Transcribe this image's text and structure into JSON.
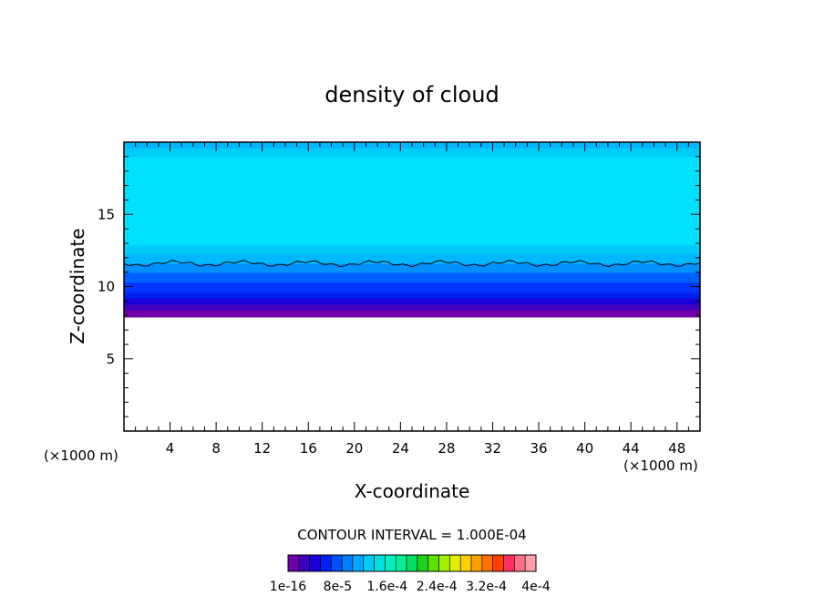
{
  "chart_data": {
    "type": "heatmap",
    "title": "density of cloud",
    "xlabel": "X-coordinate",
    "ylabel": "Z-coordinate",
    "x_unit": "(×1000 m)",
    "z_unit": "(×1000 m)",
    "xlim": [
      0,
      50
    ],
    "ylim": [
      0,
      20
    ],
    "x_ticks": [
      4,
      8,
      12,
      16,
      20,
      24,
      28,
      32,
      36,
      40,
      44,
      48
    ],
    "y_ticks": [
      5,
      10,
      15
    ],
    "contour_interval_label": "CONTOUR INTERVAL = 1.000E-04",
    "colorbar_labels": [
      "1e-16",
      "8e-5",
      "1.6e-4",
      "2.4e-4",
      "3.2e-4",
      "4e-4"
    ],
    "colorbar_colors": [
      "#7000a8",
      "#4000c0",
      "#1a00d8",
      "#0020f0",
      "#0050ff",
      "#0080ff",
      "#00aaff",
      "#00ccf8",
      "#00e0e0",
      "#00f0c0",
      "#00f09a",
      "#00e060",
      "#20d020",
      "#60e000",
      "#a0f000",
      "#e0f000",
      "#ffd000",
      "#ffa000",
      "#ff7000",
      "#ff4000",
      "#ff3060",
      "#ff6f8a",
      "#ffa0a8"
    ],
    "field_bands": [
      {
        "z_min": 7.9,
        "z_max": 8.4,
        "color": "#7000a8"
      },
      {
        "z_min": 8.4,
        "z_max": 8.8,
        "color": "#4000c0"
      },
      {
        "z_min": 8.8,
        "z_max": 9.2,
        "color": "#1a00d8"
      },
      {
        "z_min": 9.2,
        "z_max": 9.6,
        "color": "#0020f0"
      },
      {
        "z_min": 9.6,
        "z_max": 10.3,
        "color": "#0036ff"
      },
      {
        "z_min": 10.3,
        "z_max": 11.0,
        "color": "#0060ff"
      },
      {
        "z_min": 11.0,
        "z_max": 11.6,
        "color": "#0090ff"
      },
      {
        "z_min": 11.6,
        "z_max": 12.3,
        "color": "#00b8ff"
      },
      {
        "z_min": 12.3,
        "z_max": 12.9,
        "color": "#00ccf8"
      },
      {
        "z_min": 12.9,
        "z_max": 19.0,
        "color": "#00e0ff"
      },
      {
        "z_min": 19.0,
        "z_max": 19.6,
        "color": "#00ccf8"
      },
      {
        "z_min": 19.6,
        "z_max": 20.0,
        "color": "#00b8ff"
      }
    ],
    "contour_line_z": 11.6
  }
}
